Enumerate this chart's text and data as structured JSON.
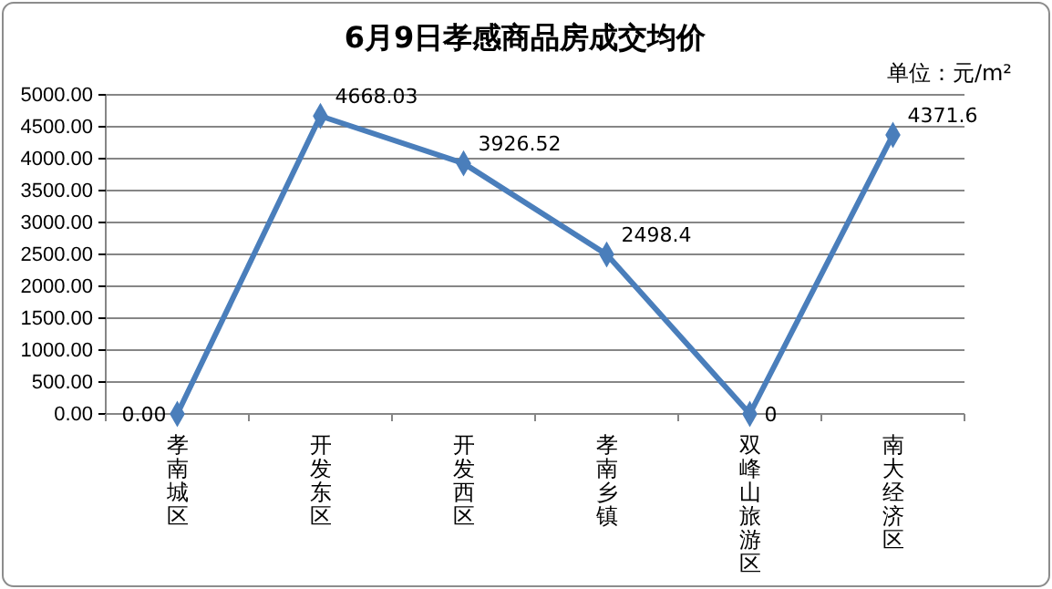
{
  "chart_data": {
    "type": "line",
    "title": "6月9日孝感商品房成交均价",
    "annotations": [
      "单位：元/m²"
    ],
    "categories": [
      "孝南城区",
      "开发东区",
      "开发西区",
      "孝南乡镇",
      "双峰山旅游区",
      "南大经济区"
    ],
    "series": [
      {
        "color": "#4a7ebb",
        "values": [
          0,
          4668.03,
          3926.52,
          2498.4,
          0,
          4371.6
        ],
        "value_labels": [
          "0.00",
          "4668.03",
          "3926.52",
          "2498.4",
          "0",
          "4371.6"
        ]
      }
    ],
    "ylim": [
      0,
      5000
    ],
    "yticks": [
      {
        "value": 0,
        "label": "0.00"
      },
      {
        "value": 500,
        "label": "500.00"
      },
      {
        "value": 1000,
        "label": "1000.00"
      },
      {
        "value": 1500,
        "label": "1500.00"
      },
      {
        "value": 2000,
        "label": "2000.00"
      },
      {
        "value": 2500,
        "label": "2500.00"
      },
      {
        "value": 3000,
        "label": "3000.00"
      },
      {
        "value": 3500,
        "label": "3500.00"
      },
      {
        "value": 4000,
        "label": "4000.00"
      },
      {
        "value": 4500,
        "label": "4500.00"
      },
      {
        "value": 5000,
        "label": "5000.00"
      }
    ],
    "grid": "y",
    "marker": "diamond",
    "line_style": "solid"
  }
}
